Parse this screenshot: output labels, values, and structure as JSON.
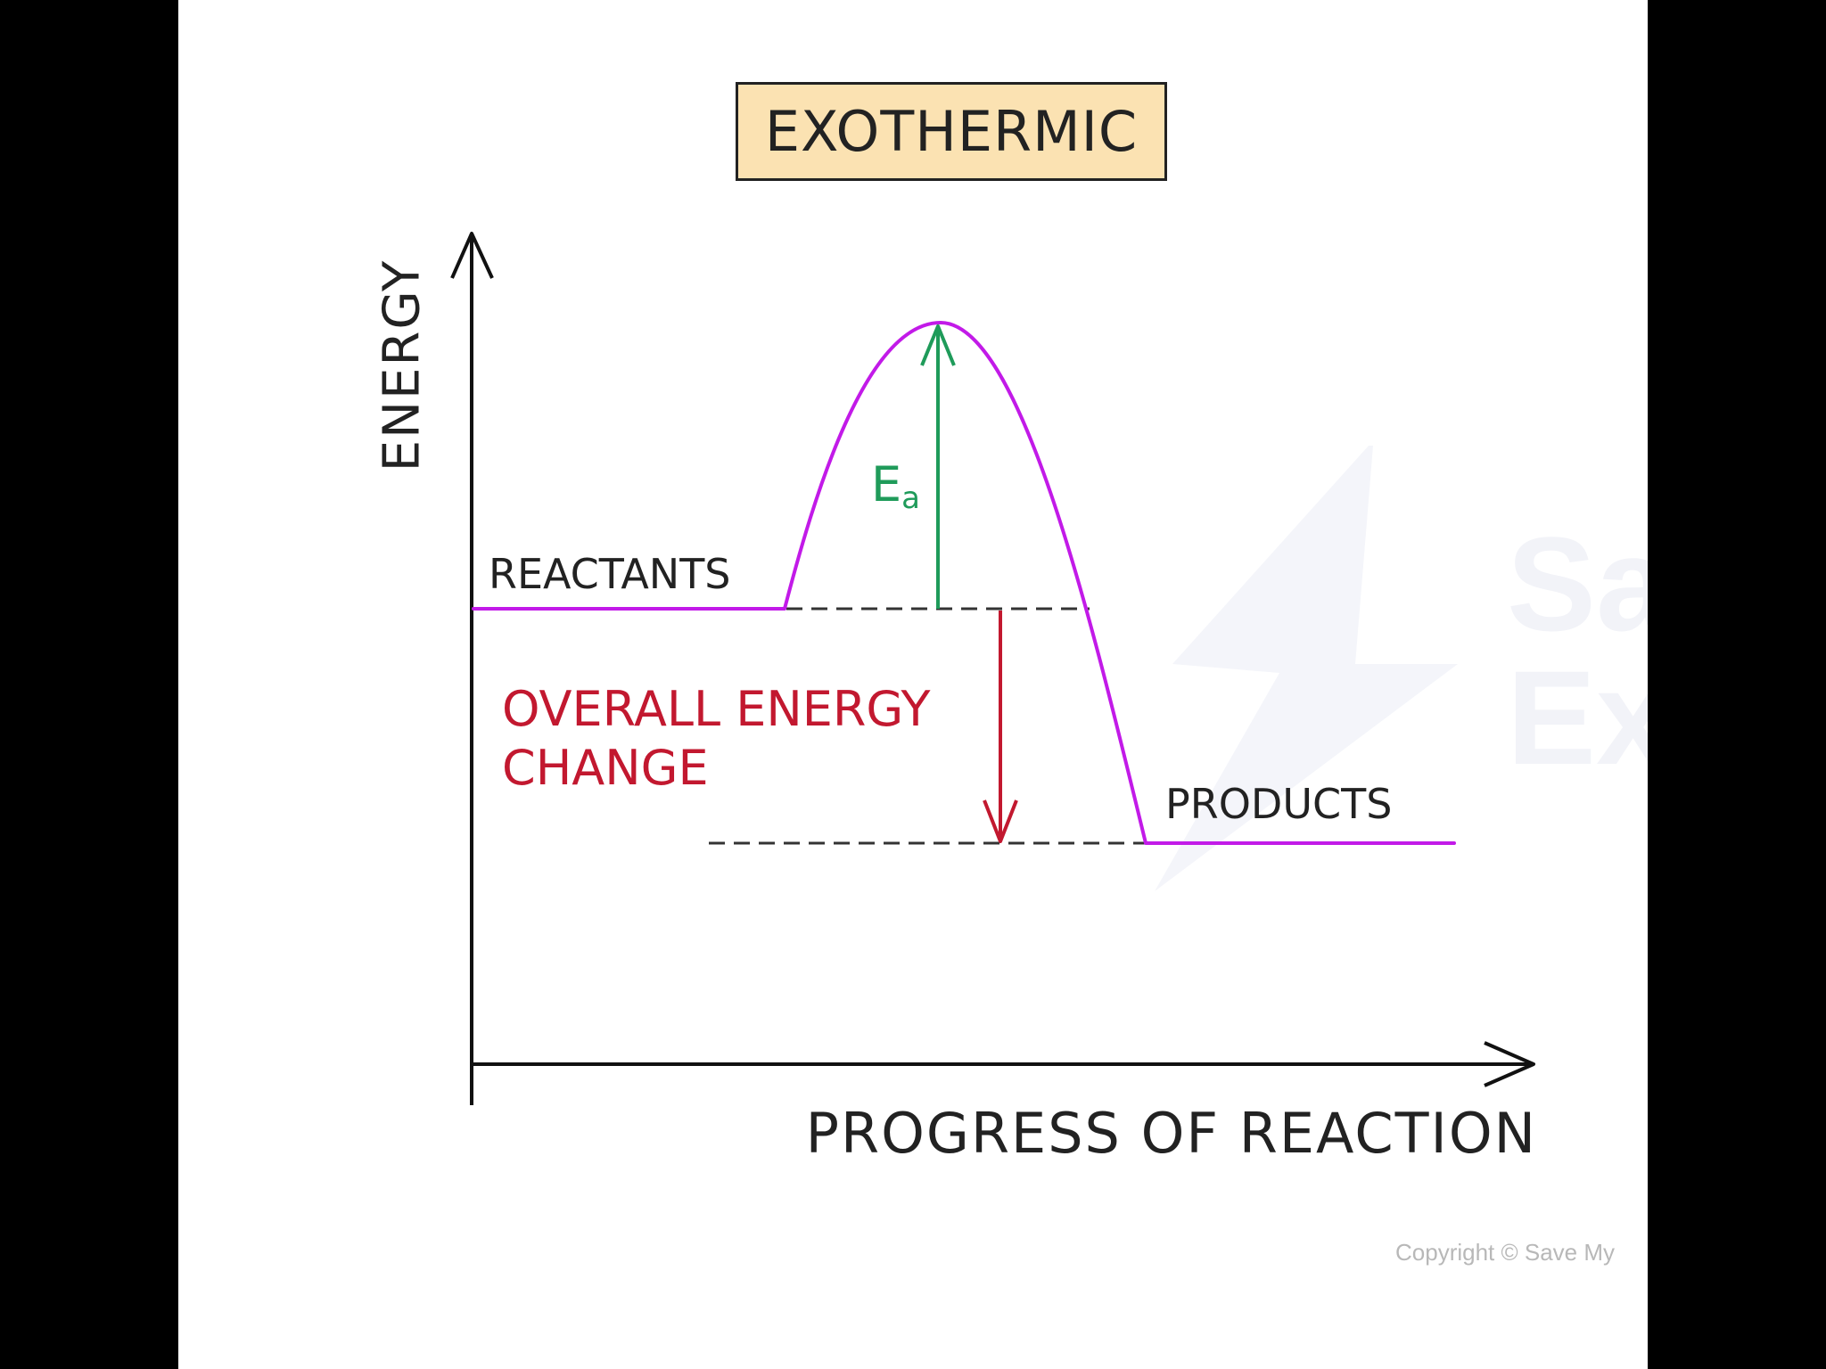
{
  "title": "EXOTHERMIC",
  "y_axis_label": "ENERGY",
  "x_axis_label": "PROGRESS OF REACTION",
  "labels": {
    "reactants": "REACTANTS",
    "products": "PRODUCTS",
    "overall_line1": "OVERALL ENERGY",
    "overall_line2": "CHANGE",
    "activation_main": "E",
    "activation_sub": "a"
  },
  "copyright": "Copyright © Save My",
  "watermark": "Sa\nEx",
  "colors": {
    "curve": "#c21ae8",
    "activation_arrow": "#1f9b5a",
    "overall_arrow": "#c2182f",
    "title_fill": "#fbe2b2",
    "axes": "#111111"
  }
}
